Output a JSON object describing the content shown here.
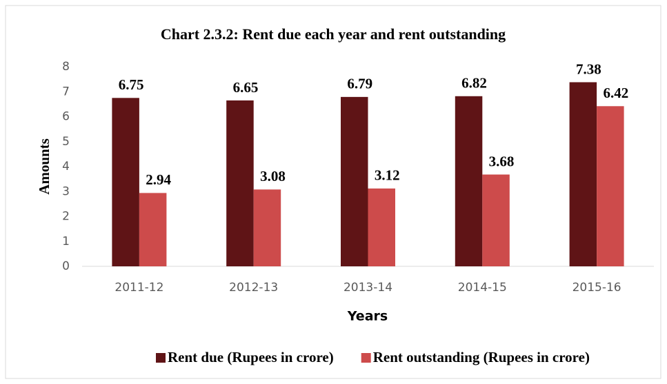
{
  "chart_data": {
    "type": "bar",
    "title": "Chart 2.3.2: Rent due each year and rent outstanding",
    "x_label": "Years",
    "y_label": "Amounts",
    "categories": [
      "2011-12",
      "2012-13",
      "2013-14",
      "2014-15",
      "2015-16"
    ],
    "series": [
      {
        "name": "Rent due (Rupees in crore)",
        "color": "#5f1416",
        "values": [
          6.75,
          6.65,
          6.79,
          6.82,
          7.38
        ]
      },
      {
        "name": "Rent outstanding (Rupees in crore)",
        "color": "#cd4b4b",
        "values": [
          2.94,
          3.08,
          3.12,
          3.68,
          6.42
        ]
      }
    ],
    "ylim": [
      0,
      8
    ],
    "yticks": [
      0,
      1,
      2,
      3,
      4,
      5,
      6,
      7,
      8
    ],
    "grid": false,
    "legend": "bottom"
  }
}
